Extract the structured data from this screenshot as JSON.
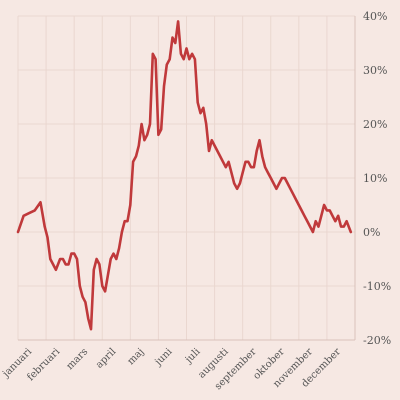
{
  "chart_data": {
    "type": "line",
    "title": "",
    "xlabel": "",
    "ylabel": "",
    "ylim": [
      -20,
      40
    ],
    "y_ticks": [
      40,
      30,
      20,
      10,
      0,
      -10,
      -20
    ],
    "y_tick_labels": [
      "40%",
      "30%",
      "20%",
      "10%",
      "0%",
      "-10%",
      "-20%"
    ],
    "y_axis_side": "right",
    "grid": true,
    "legend": "none",
    "x_label_rotation": "-45deg",
    "months": [
      "januari",
      "februari",
      "mars",
      "april",
      "maj",
      "juni",
      "juli",
      "augusti",
      "september",
      "oktober",
      "november",
      "december"
    ],
    "series": [
      {
        "color": "#c0393b",
        "x": [
          0,
          0.2,
          0.4,
          0.6,
          0.8,
          0.95,
          1.05,
          1.15,
          1.25,
          1.35,
          1.5,
          1.6,
          1.7,
          1.8,
          1.9,
          2.0,
          2.1,
          2.2,
          2.3,
          2.4,
          2.5,
          2.6,
          2.7,
          2.8,
          2.9,
          3.0,
          3.1,
          3.2,
          3.3,
          3.4,
          3.5,
          3.6,
          3.7,
          3.8,
          3.9,
          4.0,
          4.1,
          4.2,
          4.3,
          4.4,
          4.5,
          4.6,
          4.7,
          4.8,
          4.9,
          5.0,
          5.1,
          5.2,
          5.3,
          5.4,
          5.5,
          5.6,
          5.7,
          5.8,
          5.9,
          6.0,
          6.1,
          6.2,
          6.3,
          6.4,
          6.5,
          6.6,
          6.7,
          6.8,
          6.9,
          7.0,
          7.1,
          7.2,
          7.3,
          7.4,
          7.5,
          7.6,
          7.7,
          7.8,
          7.9,
          8.0,
          8.1,
          8.2,
          8.3,
          8.4,
          8.5,
          8.6,
          8.7,
          8.8,
          8.9,
          9.0,
          9.1,
          9.2,
          9.3,
          9.4,
          9.5,
          9.6,
          9.7,
          9.8,
          9.9,
          10.0,
          10.1,
          10.2,
          10.3,
          10.4,
          10.5,
          10.6,
          10.7,
          10.8,
          10.9,
          11.0,
          11.1,
          11.2,
          11.3,
          11.4,
          11.5,
          11.6,
          11.7,
          11.85
        ],
        "y": [
          0,
          3,
          3.5,
          4,
          5.5,
          1,
          -1,
          -5,
          -6,
          -7,
          -5,
          -5,
          -6,
          -6,
          -4,
          -4,
          -5,
          -10,
          -12,
          -13,
          -16,
          -18,
          -7,
          -5,
          -6,
          -10,
          -11,
          -8,
          -5,
          -4,
          -5,
          -3,
          0,
          2,
          2,
          5,
          13,
          14,
          16,
          20,
          17,
          18,
          20,
          33,
          32,
          18,
          19,
          27,
          31,
          32,
          36,
          35,
          39,
          33,
          32,
          34,
          32,
          33,
          32,
          24,
          22,
          23,
          20,
          15,
          17,
          16,
          15,
          14,
          13,
          12,
          13,
          11,
          9,
          8,
          9,
          11,
          13,
          13,
          12,
          12,
          15,
          17,
          14,
          12,
          11,
          10,
          9,
          8,
          9,
          10,
          10,
          9,
          8,
          7,
          6,
          5,
          4,
          3,
          2,
          1,
          0,
          2,
          1,
          3,
          5,
          4,
          4,
          3,
          2,
          3,
          1,
          1,
          2,
          0
        ]
      }
    ]
  }
}
